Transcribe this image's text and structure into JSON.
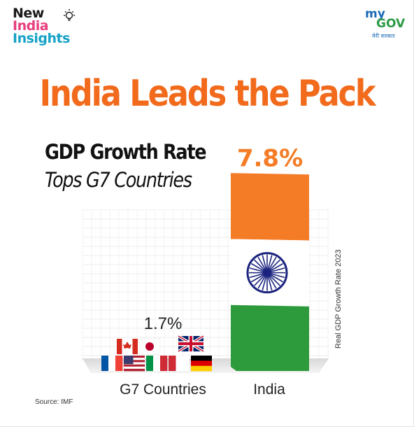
{
  "logo_left": {
    "line1": "New",
    "line2": "India",
    "line3": "Insights"
  },
  "logo_right": {
    "line1": "my",
    "line2": "GOV",
    "line3": "मेरी सरकार"
  },
  "title": "India Leads the Pack",
  "subtitle_1": "GDP Growth Rate",
  "subtitle_2": "Tops G7 Countries",
  "side_label": "Real GDP Growth Rate 2023",
  "source": "Source: IMF",
  "colors": {
    "saffron": "#f47c26",
    "green": "#2d9a3b",
    "navy": "#1a237e",
    "title": "#f26a1b"
  },
  "chart_data": {
    "type": "bar",
    "categories": [
      "G7 Countries",
      "India"
    ],
    "values": [
      1.7,
      7.8
    ],
    "value_labels": [
      "1.7%",
      "7.8%"
    ],
    "ylim": [
      0,
      8
    ],
    "grid": true,
    "g7_flags": [
      "Canada",
      "Japan",
      "United Kingdom",
      "France",
      "United States",
      "Italy",
      "Germany"
    ]
  }
}
